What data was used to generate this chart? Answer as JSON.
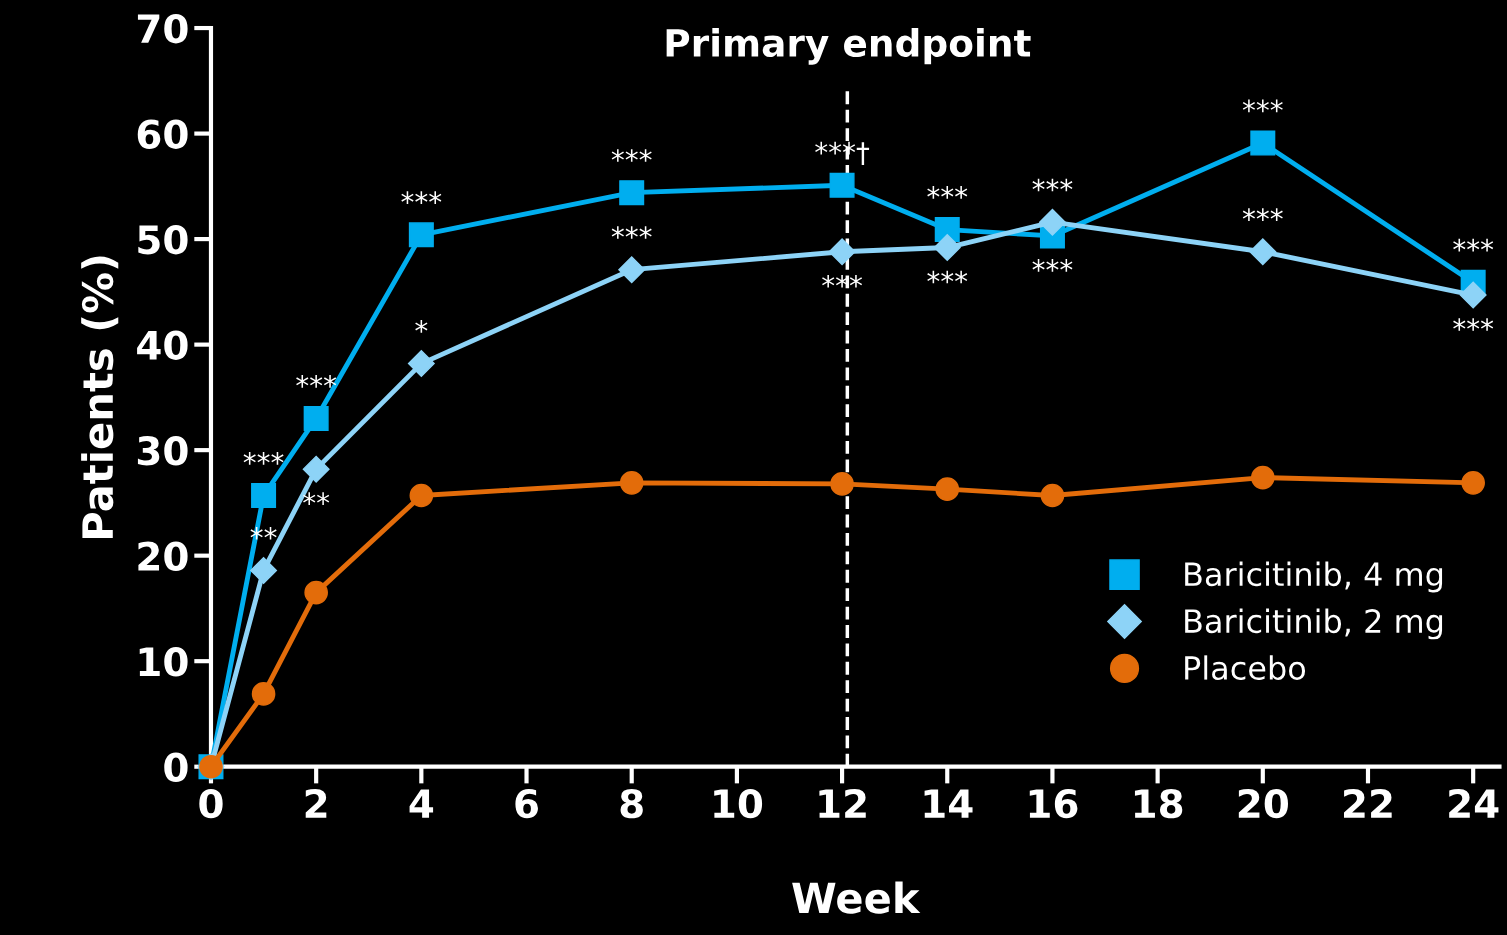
{
  "chart_data": {
    "type": "line",
    "xlabel": "Week",
    "ylabel": "Patients (%)",
    "x": [
      0,
      1,
      2,
      4,
      8,
      12,
      14,
      16,
      20,
      24
    ],
    "xlim": [
      0,
      24.5
    ],
    "xticks": [
      0,
      2,
      4,
      6,
      8,
      10,
      12,
      14,
      16,
      18,
      20,
      22,
      24
    ],
    "ylim": [
      0,
      70
    ],
    "yticks": [
      0,
      10,
      20,
      30,
      40,
      50,
      60,
      70
    ],
    "grid": false,
    "legend": "bottom right",
    "line_style": "solid",
    "series": [
      {
        "name": "Baricitinib, 4 mg",
        "color": "#00aeef",
        "marker": "square",
        "values": [
          0,
          25.7,
          33.0,
          50.4,
          54.4,
          55.1,
          50.9,
          50.3,
          59.1,
          45.9
        ]
      },
      {
        "name": "Baricitinib, 2 mg",
        "color": "#8dd3f7",
        "marker": "diamond",
        "values": [
          0,
          18.6,
          28.2,
          38.2,
          47.1,
          48.8,
          49.2,
          51.6,
          48.8,
          44.7
        ]
      },
      {
        "name": "Placebo",
        "color": "#e36c0a",
        "marker": "circle",
        "values": [
          0,
          6.9,
          16.5,
          25.7,
          26.9,
          26.8,
          26.3,
          25.7,
          27.4,
          26.9
        ]
      }
    ],
    "ref_lines": [
      {
        "axis": "x",
        "value": 12.1,
        "label": "Primary endpoint",
        "color": "#ffffff",
        "line_style": "dashed"
      }
    ],
    "annotations": [
      {
        "text": "***",
        "x": 1,
        "y": 25.7
      },
      {
        "text": "***",
        "x": 2,
        "y": 33.0
      },
      {
        "text": "***",
        "x": 4,
        "y": 50.4
      },
      {
        "text": "***",
        "x": 8,
        "y": 54.4
      },
      {
        "text": "***†",
        "x": 12,
        "y": 55.1
      },
      {
        "text": "***",
        "x": 14,
        "y": 50.9
      },
      {
        "text": "***",
        "x": 16,
        "y": 50.3
      },
      {
        "text": "***",
        "x": 20,
        "y": 59.1
      },
      {
        "text": "***",
        "x": 24,
        "y": 45.9
      },
      {
        "text": "**",
        "x": 1,
        "y": 18.6
      },
      {
        "text": "**",
        "x": 2,
        "y": 28.2
      },
      {
        "text": "*",
        "x": 4,
        "y": 38.2
      },
      {
        "text": "***",
        "x": 8,
        "y": 47.1
      },
      {
        "text": "***",
        "x": 12,
        "y": 48.8
      },
      {
        "text": "***",
        "x": 14,
        "y": 49.2
      },
      {
        "text": "***",
        "x": 16,
        "y": 51.6
      },
      {
        "text": "***",
        "x": 20,
        "y": 48.8
      },
      {
        "text": "***",
        "x": 24,
        "y": 44.7
      }
    ]
  }
}
